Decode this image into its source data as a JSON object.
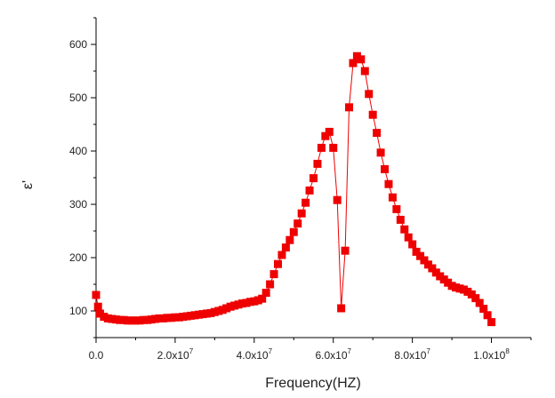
{
  "chart_data": {
    "type": "scatter",
    "title": "",
    "xlabel": "Frequency(HZ)",
    "ylabel": "ε'",
    "xlim": [
      0,
      110000000.0
    ],
    "ylim": [
      50,
      650
    ],
    "grid": false,
    "marker": "square",
    "connected_line": true,
    "color": "#ee0000",
    "xticks": [
      {
        "value": 0,
        "base": "0.0",
        "exp": ""
      },
      {
        "value": 20000000.0,
        "base": "2.0x10",
        "exp": "7"
      },
      {
        "value": 40000000.0,
        "base": "4.0x10",
        "exp": "7"
      },
      {
        "value": 60000000.0,
        "base": "6.0x10",
        "exp": "7"
      },
      {
        "value": 80000000.0,
        "base": "8.0x10",
        "exp": "7"
      },
      {
        "value": 100000000.0,
        "base": "1.0x10",
        "exp": "8"
      }
    ],
    "yticks": [
      100,
      200,
      300,
      400,
      500,
      600
    ],
    "x": [
      0,
      500000.0,
      1000000.0,
      2000000.0,
      3000000.0,
      4000000.0,
      5000000.0,
      6000000.0,
      7000000.0,
      8000000.0,
      9000000.0,
      10000000.0,
      11000000.0,
      12000000.0,
      13000000.0,
      14000000.0,
      15000000.0,
      16000000.0,
      17000000.0,
      18000000.0,
      19000000.0,
      20000000.0,
      21000000.0,
      22000000.0,
      23000000.0,
      24000000.0,
      25000000.0,
      26000000.0,
      27000000.0,
      28000000.0,
      29000000.0,
      30000000.0,
      31000000.0,
      32000000.0,
      33000000.0,
      34000000.0,
      35000000.0,
      36000000.0,
      37000000.0,
      38000000.0,
      39000000.0,
      40000000.0,
      41000000.0,
      42000000.0,
      43000000.0,
      44000000.0,
      45000000.0,
      46000000.0,
      47000000.0,
      48000000.0,
      49000000.0,
      50000000.0,
      51000000.0,
      52000000.0,
      53000000.0,
      54000000.0,
      55000000.0,
      56000000.0,
      57000000.0,
      58000000.0,
      59000000.0,
      60000000.0,
      61000000.0,
      62000000.0,
      63000000.0,
      64000000.0,
      65000000.0,
      66000000.0,
      67000000.0,
      68000000.0,
      69000000.0,
      70000000.0,
      71000000.0,
      72000000.0,
      73000000.0,
      74000000.0,
      75000000.0,
      76000000.0,
      77000000.0,
      78000000.0,
      79000000.0,
      80000000.0,
      81000000.0,
      82000000.0,
      83000000.0,
      84000000.0,
      85000000.0,
      86000000.0,
      87000000.0,
      88000000.0,
      89000000.0,
      90000000.0,
      91000000.0,
      92000000.0,
      93000000.0,
      94000000.0,
      95000000.0,
      96000000.0,
      97000000.0,
      98000000.0,
      99000000.0,
      100000000.0
    ],
    "y": [
      130,
      108,
      95,
      89,
      86,
      85,
      84,
      83,
      83,
      82,
      82,
      82,
      82,
      83,
      83,
      84,
      85,
      86,
      86,
      87,
      87,
      88,
      88,
      89,
      90,
      91,
      92,
      93,
      94,
      95,
      96,
      98,
      100,
      102,
      105,
      108,
      110,
      112,
      114,
      115,
      117,
      118,
      120,
      123,
      134,
      150,
      169,
      188,
      205,
      219,
      233,
      248,
      264,
      283,
      303,
      326,
      349,
      376,
      406,
      428,
      436,
      406,
      308,
      105,
      213,
      482,
      565,
      578,
      572,
      550,
      507,
      468,
      434,
      397,
      366,
      338,
      313,
      291,
      271,
      253,
      238,
      225,
      211,
      203,
      195,
      187,
      180,
      172,
      165,
      159,
      153,
      147,
      144,
      142,
      140,
      136,
      131,
      124,
      115,
      104,
      92,
      79
    ]
  }
}
